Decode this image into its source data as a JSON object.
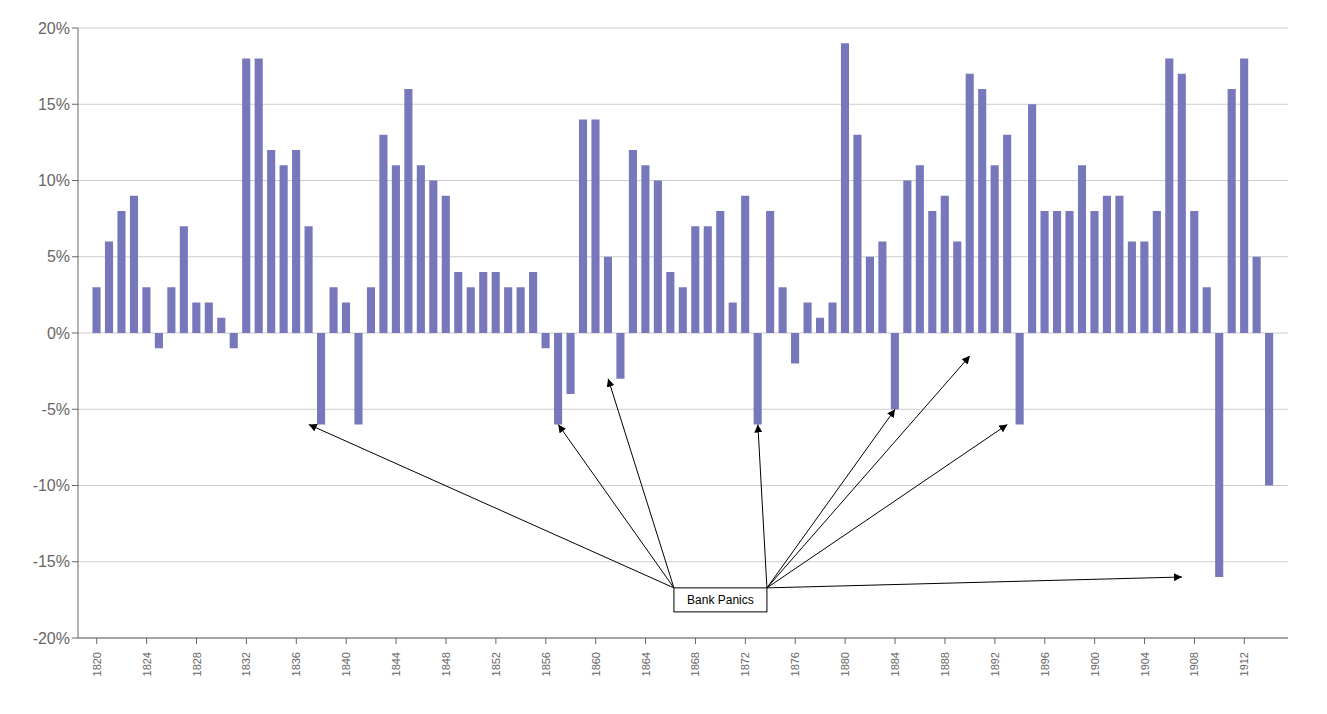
{
  "chart_data": {
    "type": "bar",
    "x": [
      1820,
      1821,
      1822,
      1823,
      1824,
      1825,
      1826,
      1827,
      1828,
      1829,
      1830,
      1831,
      1832,
      1833,
      1834,
      1835,
      1836,
      1837,
      1838,
      1839,
      1840,
      1841,
      1842,
      1843,
      1844,
      1845,
      1846,
      1847,
      1848,
      1849,
      1850,
      1851,
      1852,
      1853,
      1854,
      1855,
      1856,
      1857,
      1858,
      1859,
      1860,
      1861,
      1862,
      1863,
      1864,
      1865,
      1866,
      1867,
      1868,
      1869,
      1870,
      1871,
      1872,
      1873,
      1874,
      1875,
      1876,
      1877,
      1878,
      1879,
      1880,
      1881,
      1882,
      1883,
      1884,
      1885,
      1886,
      1887,
      1888,
      1889,
      1890,
      1891,
      1892,
      1893,
      1894,
      1895,
      1896,
      1897,
      1898,
      1899,
      1900,
      1901,
      1902,
      1903,
      1904,
      1905,
      1906,
      1907,
      1908,
      1909,
      1910,
      1911,
      1912,
      1913,
      1914
    ],
    "values": [
      3,
      6,
      8,
      9,
      3,
      -1,
      3,
      7,
      2,
      2,
      1,
      -1,
      18,
      18,
      12,
      11,
      12,
      7,
      -6,
      3,
      2,
      -6,
      3,
      13,
      11,
      16,
      11,
      10,
      9,
      4,
      3,
      4,
      4,
      3,
      3,
      4,
      -1,
      -6,
      -4,
      14,
      14,
      5,
      -3,
      12,
      11,
      10,
      4,
      3,
      7,
      7,
      8,
      2,
      9,
      -6,
      8,
      3,
      -2,
      2,
      1,
      2,
      19,
      13,
      5,
      6,
      -5,
      10,
      11,
      8,
      9,
      6,
      17,
      16,
      11,
      13,
      -6,
      15,
      8,
      8,
      8,
      11,
      8,
      9,
      9,
      6,
      6,
      8,
      18,
      17,
      8,
      3,
      -16,
      16,
      18,
      5,
      -10
    ],
    "color": "#7777bb",
    "xlim": [
      1818.5,
      1915.5
    ],
    "xticks": [
      1820,
      1824,
      1828,
      1832,
      1836,
      1840,
      1844,
      1848,
      1852,
      1856,
      1860,
      1864,
      1868,
      1872,
      1876,
      1880,
      1884,
      1888,
      1892,
      1896,
      1900,
      1904,
      1908,
      1912
    ],
    "ylim": [
      -20,
      20
    ],
    "yticks": [
      {
        "value": -20,
        "label": "-20%"
      },
      {
        "value": -15,
        "label": "-15%"
      },
      {
        "value": -10,
        "label": "-10%"
      },
      {
        "value": -5,
        "label": "-5%"
      },
      {
        "value": 0,
        "label": "0%"
      },
      {
        "value": 5,
        "label": "5%"
      },
      {
        "value": 10,
        "label": "10%"
      },
      {
        "value": 15,
        "label": "15%"
      },
      {
        "value": 20,
        "label": "20%"
      }
    ],
    "grid": true,
    "annotations": [
      {
        "text": "Bank Panics",
        "x": 1870,
        "y": -17.5,
        "arrows_to": [
          {
            "x": 1837,
            "y": -6.0
          },
          {
            "x": 1857,
            "y": -6.0
          },
          {
            "x": 1861,
            "y": -3.0
          },
          {
            "x": 1873,
            "y": -6.0
          },
          {
            "x": 1884,
            "y": -5.0
          },
          {
            "x": 1890,
            "y": -1.5
          },
          {
            "x": 1893,
            "y": -6.0
          },
          {
            "x": 1907,
            "y": -16.0
          }
        ]
      }
    ]
  }
}
